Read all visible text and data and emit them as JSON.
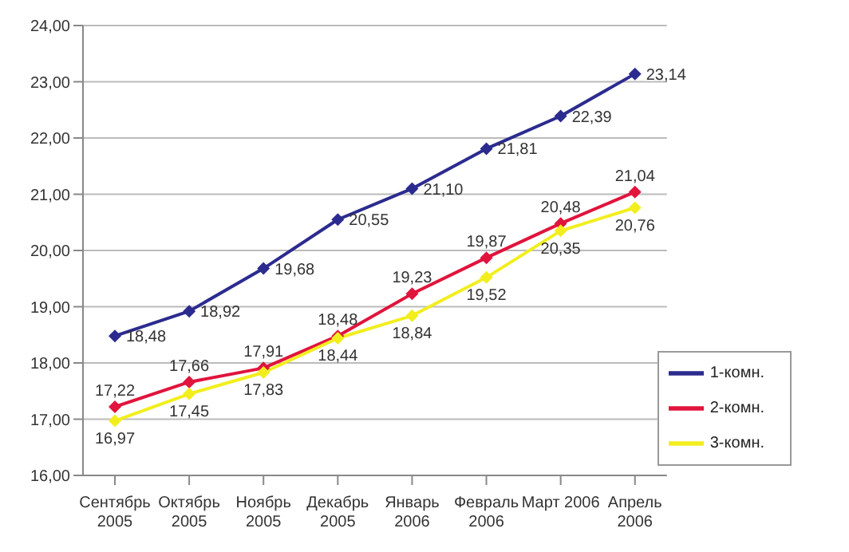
{
  "chart_data": {
    "type": "line",
    "categories": [
      "Сентябрь 2005",
      "Октябрь 2005",
      "Ноябрь 2005",
      "Декабрь 2005",
      "Январь 2006",
      "Февраль 2006",
      "Март 2006",
      "Апрель 2006"
    ],
    "series": [
      {
        "name": "1-комн.",
        "color": "#2b2b8f",
        "values": [
          18.48,
          18.92,
          19.68,
          20.55,
          21.1,
          21.81,
          22.39,
          23.14
        ],
        "value_labels": [
          "18,48",
          "18,92",
          "19,68",
          "20,55",
          "21,10",
          "21,81",
          "22,39",
          "23,14"
        ]
      },
      {
        "name": "2-комн.",
        "color": "#e0143c",
        "values": [
          17.22,
          17.66,
          17.91,
          18.48,
          19.23,
          19.87,
          20.48,
          21.04
        ],
        "value_labels": [
          "17,22",
          "17,66",
          "17,91",
          "18,48",
          "19,23",
          "19,87",
          "20,48",
          "21,04"
        ]
      },
      {
        "name": "3-комн.",
        "color": "#f2ee1e",
        "values": [
          16.97,
          17.45,
          17.83,
          18.44,
          18.84,
          19.52,
          20.35,
          20.76
        ],
        "value_labels": [
          "16,97",
          "17,45",
          "17,83",
          "18,44",
          "18,84",
          "19,52",
          "20,35",
          "20,76"
        ]
      }
    ],
    "ylim": [
      16,
      24
    ],
    "yticks": [
      {
        "value": 16,
        "label": "16,00"
      },
      {
        "value": 17,
        "label": "17,00"
      },
      {
        "value": 18,
        "label": "18,00"
      },
      {
        "value": 19,
        "label": "19,00"
      },
      {
        "value": 20,
        "label": "20,00"
      },
      {
        "value": 21,
        "label": "21,00"
      },
      {
        "value": 22,
        "label": "22,00"
      },
      {
        "value": 23,
        "label": "23,00"
      },
      {
        "value": 24,
        "label": "24,00"
      }
    ],
    "grid": "y",
    "legend": "bottom right",
    "marker": "diamond",
    "line_style": "solid"
  }
}
